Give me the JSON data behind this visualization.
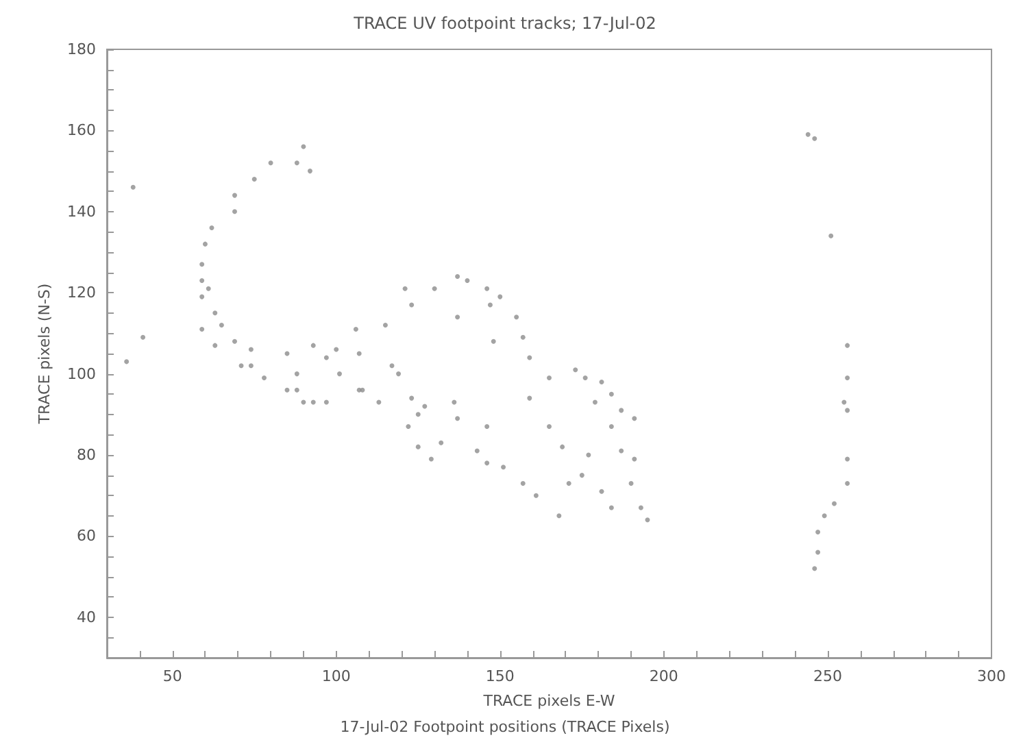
{
  "chart_data": {
    "type": "scatter",
    "title": "TRACE UV footpoint tracks; 17-Jul-02",
    "xlabel": "TRACE pixels E-W",
    "ylabel": "TRACE pixels (N-S)",
    "annotations": [
      "17-Jul-02 Footpoint positions (TRACE Pixels)"
    ],
    "marker": "circle",
    "xlim": [
      30,
      300
    ],
    "ylim": [
      30,
      180
    ],
    "xticks": [
      {
        "value": 30,
        "label": null
      },
      {
        "value": 40,
        "label": null
      },
      50,
      {
        "value": 60,
        "label": null
      },
      {
        "value": 70,
        "label": null
      },
      {
        "value": 80,
        "label": null
      },
      {
        "value": 90,
        "label": null
      },
      100,
      {
        "value": 110,
        "label": null
      },
      {
        "value": 120,
        "label": null
      },
      {
        "value": 130,
        "label": null
      },
      {
        "value": 140,
        "label": null
      },
      150,
      {
        "value": 160,
        "label": null
      },
      {
        "value": 170,
        "label": null
      },
      {
        "value": 180,
        "label": null
      },
      {
        "value": 190,
        "label": null
      },
      200,
      {
        "value": 210,
        "label": null
      },
      {
        "value": 220,
        "label": null
      },
      {
        "value": 230,
        "label": null
      },
      {
        "value": 240,
        "label": null
      },
      250,
      {
        "value": 260,
        "label": null
      },
      {
        "value": 270,
        "label": null
      },
      {
        "value": 280,
        "label": null
      },
      {
        "value": 290,
        "label": null
      },
      300
    ],
    "yticks": [
      {
        "value": 30,
        "label": null
      },
      {
        "value": 35,
        "label": null
      },
      40,
      {
        "value": 45,
        "label": null
      },
      {
        "value": 50,
        "label": null
      },
      {
        "value": 55,
        "label": null
      },
      60,
      {
        "value": 65,
        "label": null
      },
      {
        "value": 70,
        "label": null
      },
      {
        "value": 75,
        "label": null
      },
      80,
      {
        "value": 85,
        "label": null
      },
      {
        "value": 90,
        "label": null
      },
      {
        "value": 95,
        "label": null
      },
      100,
      {
        "value": 105,
        "label": null
      },
      {
        "value": 110,
        "label": null
      },
      {
        "value": 115,
        "label": null
      },
      120,
      {
        "value": 125,
        "label": null
      },
      {
        "value": 130,
        "label": null
      },
      {
        "value": 135,
        "label": null
      },
      140,
      {
        "value": 145,
        "label": null
      },
      {
        "value": 150,
        "label": null
      },
      {
        "value": 155,
        "label": null
      },
      160,
      {
        "value": 165,
        "label": null
      },
      {
        "value": 170,
        "label": null
      },
      {
        "value": 175,
        "label": null
      },
      180
    ],
    "series": [
      {
        "color": "#8c8c8c",
        "x": [
          80,
          75,
          69,
          69,
          90,
          88,
          92,
          62,
          60,
          59,
          59,
          59,
          61,
          63,
          65,
          69,
          74,
          78,
          59,
          63,
          71,
          38,
          41,
          36,
          85,
          88,
          93,
          97,
          100,
          106,
          107,
          88,
          93,
          107,
          74,
          85,
          90,
          97,
          101,
          108,
          113,
          115,
          117,
          119,
          123,
          125,
          127,
          122,
          125,
          129,
          132,
          136,
          137,
          143,
          146,
          151,
          146,
          157,
          161,
          168,
          159,
          121,
          123,
          130,
          137,
          140,
          146,
          147,
          150,
          137,
          155,
          157,
          148,
          159,
          165,
          165,
          169,
          173,
          176,
          179,
          181,
          184,
          187,
          191,
          184,
          187,
          191,
          190,
          193,
          195,
          177,
          175,
          181,
          184,
          171,
          244,
          246,
          251,
          256,
          256,
          256,
          255,
          256,
          256,
          252,
          249,
          247,
          247,
          246
        ],
        "values": [
          152,
          148,
          144,
          140,
          156,
          152,
          150,
          136,
          132,
          127,
          123,
          119,
          121,
          115,
          112,
          108,
          106,
          99,
          111,
          107,
          102,
          146,
          109,
          103,
          105,
          100,
          107,
          104,
          106,
          111,
          105,
          96,
          93,
          96,
          102,
          96,
          93,
          93,
          100,
          96,
          93,
          112,
          102,
          100,
          94,
          90,
          92,
          87,
          82,
          79,
          83,
          93,
          89,
          81,
          78,
          77,
          87,
          73,
          70,
          65,
          94,
          121,
          117,
          121,
          124,
          123,
          121,
          117,
          119,
          114,
          114,
          109,
          108,
          104,
          99,
          87,
          82,
          101,
          99,
          93,
          98,
          95,
          91,
          89,
          87,
          81,
          79,
          73,
          67,
          64,
          80,
          75,
          71,
          67,
          73,
          159,
          158,
          134,
          107,
          99,
          91,
          93,
          79,
          73,
          68,
          65,
          61,
          56,
          52
        ]
      }
    ]
  }
}
